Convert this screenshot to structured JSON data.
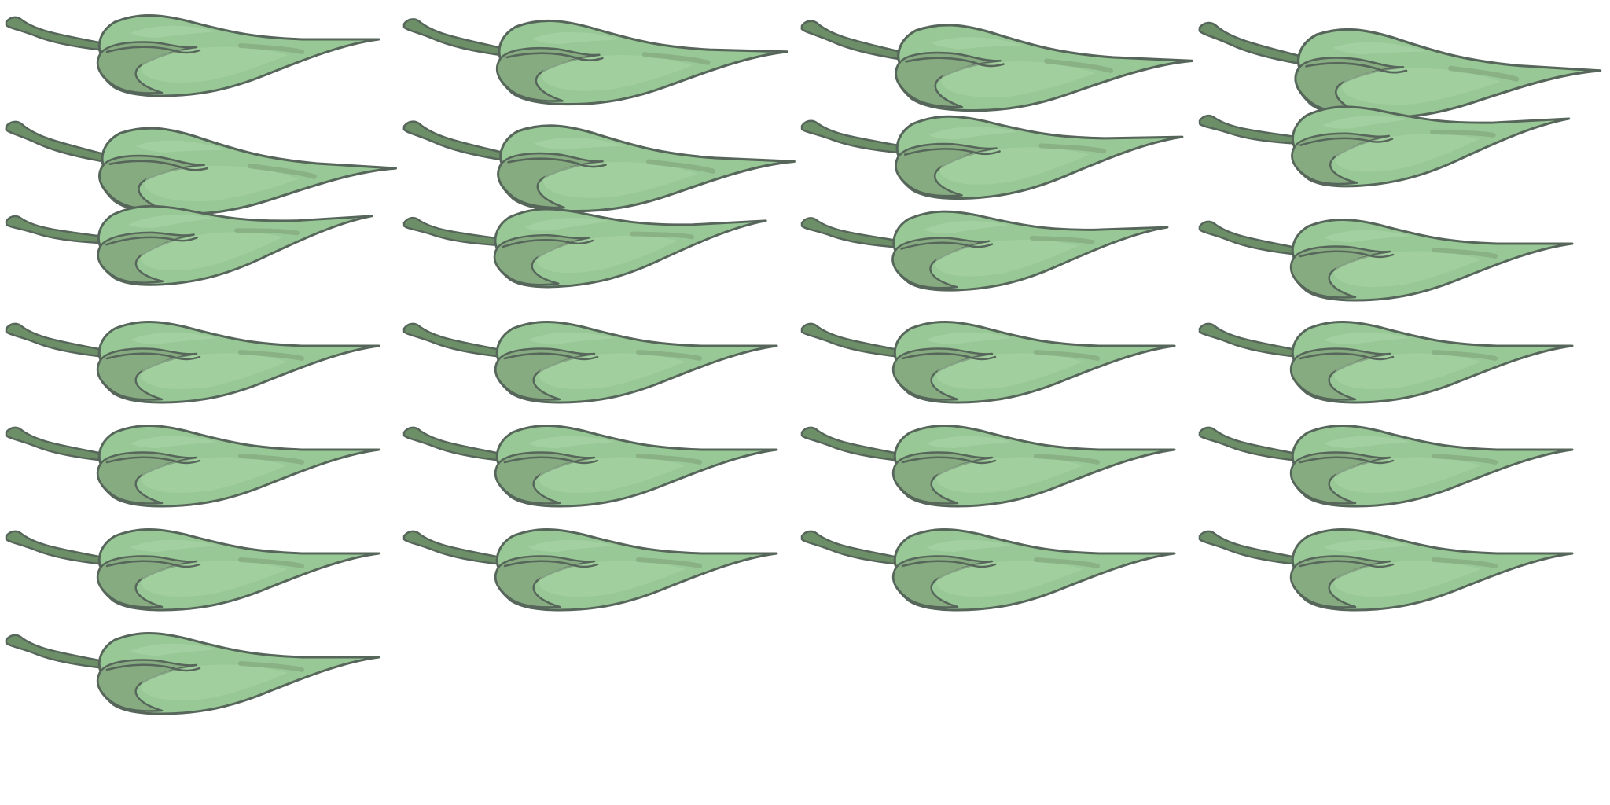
{
  "sprite_sheet": {
    "subject": "leaf-icon",
    "colors": {
      "background": "#ffffff",
      "leaf_light": "#98c896",
      "leaf_dark": "#86ab80",
      "leaf_highlight": "#aad6a6",
      "stem": "#6d8f68",
      "outline": "#57665a"
    },
    "frames": [
      {
        "row": 1,
        "col": 1,
        "variant": "curled"
      },
      {
        "row": 1,
        "col": 2,
        "variant": "curled"
      },
      {
        "row": 1,
        "col": 3,
        "variant": "curled"
      },
      {
        "row": 1,
        "col": 4,
        "variant": "curled"
      },
      {
        "row": 2,
        "col": 1,
        "variant": "curled"
      },
      {
        "row": 2,
        "col": 2,
        "variant": "curled"
      },
      {
        "row": 2,
        "col": 3,
        "variant": "curled"
      },
      {
        "row": 2,
        "col": 4,
        "variant": "curled"
      },
      {
        "row": 3,
        "col": 1,
        "variant": "curled"
      },
      {
        "row": 3,
        "col": 2,
        "variant": "curled"
      },
      {
        "row": 3,
        "col": 3,
        "variant": "curled"
      },
      {
        "row": 3,
        "col": 4,
        "variant": "flat"
      },
      {
        "row": 4,
        "col": 1,
        "variant": "flat"
      },
      {
        "row": 4,
        "col": 2,
        "variant": "flat"
      },
      {
        "row": 4,
        "col": 3,
        "variant": "flat"
      },
      {
        "row": 4,
        "col": 4,
        "variant": "flat"
      },
      {
        "row": 5,
        "col": 1,
        "variant": "flat"
      },
      {
        "row": 5,
        "col": 2,
        "variant": "flat"
      },
      {
        "row": 5,
        "col": 3,
        "variant": "flat"
      },
      {
        "row": 5,
        "col": 4,
        "variant": "flat"
      },
      {
        "row": 6,
        "col": 1,
        "variant": "flat"
      },
      {
        "row": 6,
        "col": 2,
        "variant": "flat"
      },
      {
        "row": 6,
        "col": 3,
        "variant": "flat"
      },
      {
        "row": 6,
        "col": 4,
        "variant": "flat"
      },
      {
        "row": 7,
        "col": 1,
        "variant": "flat"
      }
    ]
  }
}
